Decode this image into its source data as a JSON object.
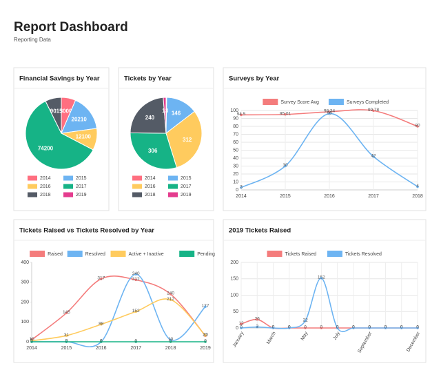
{
  "header": {
    "title": "Report Dashboard",
    "subtitle": "Reporting Data"
  },
  "chart_data": [
    {
      "type": "pie",
      "title": "Financial Savings by Year",
      "categories": [
        "2014",
        "2015",
        "2016",
        "2017",
        "2018",
        "2019"
      ],
      "values": [
        8000,
        20210,
        12100,
        74200,
        9015,
        0
      ],
      "colors": [
        "#ff6f80",
        "#6db4f2",
        "#ffcb5e",
        "#16b386",
        "#545b66",
        "#e43c8e"
      ]
    },
    {
      "type": "pie",
      "title": "Tickets by Year",
      "categories": [
        "2014",
        "2015",
        "2016",
        "2017",
        "2018",
        "2019"
      ],
      "values": [
        3,
        146,
        312,
        306,
        240,
        13
      ],
      "colors": [
        "#ff6f80",
        "#6db4f2",
        "#ffcb5e",
        "#16b386",
        "#545b66",
        "#e43c8e"
      ]
    },
    {
      "type": "line",
      "title": "Surveys by Year",
      "categories": [
        "2014",
        "2015",
        "2016",
        "2017",
        "2018"
      ],
      "series": [
        {
          "name": "Survey Score Avg",
          "color": "#f47c7c",
          "values": [
            94.5,
            95.01,
            98.34,
            99.78,
            80
          ]
        },
        {
          "name": "Surveys Completed",
          "color": "#6db4f2",
          "values": [
            3,
            30,
            96,
            42,
            4
          ]
        }
      ],
      "ylim": [
        0,
        100
      ],
      "yticks": [
        0,
        10,
        20,
        30,
        40,
        50,
        60,
        70,
        80,
        90,
        100
      ],
      "grid": true
    },
    {
      "type": "line",
      "title": "Tickets Raised vs Tickets Resolved by Year",
      "categories": [
        "2014",
        "2015",
        "2016",
        "2017",
        "2018",
        "2019"
      ],
      "series": [
        {
          "name": "Raised",
          "color": "#f47c7c",
          "values": [
            10,
            145,
            317,
            312,
            240,
            30
          ]
        },
        {
          "name": "Resolved",
          "color": "#6db4f2",
          "values": [
            0,
            0,
            0,
            340,
            10,
            177
          ]
        },
        {
          "name": "Active + Inactive",
          "color": "#ffcb5e",
          "values": [
            5,
            31,
            88,
            152,
            212,
            32
          ]
        },
        {
          "name": "Pending",
          "color": "#16b386",
          "values": [
            0,
            0,
            0,
            0,
            0,
            0
          ]
        }
      ],
      "ylim": [
        0,
        400
      ],
      "yticks": [
        0,
        100,
        200,
        300,
        400
      ],
      "grid": false
    },
    {
      "type": "line",
      "title": "2019 Tickets Raised",
      "categories": [
        "January",
        null,
        "March",
        null,
        "May",
        null,
        "July",
        null,
        "September",
        null,
        null,
        "December"
      ],
      "series": [
        {
          "name": "Tickets Raised",
          "color": "#f47c7c",
          "values": [
            12,
            26,
            0,
            0,
            0,
            0,
            0,
            0,
            0,
            0,
            0,
            0
          ]
        },
        {
          "name": "Tickets Resolved",
          "color": "#6db4f2",
          "values": [
            0,
            3,
            0,
            0,
            22,
            152,
            0,
            0,
            0,
            0,
            0,
            0
          ]
        }
      ],
      "ylim": [
        0,
        200
      ],
      "yticks": [
        0,
        50,
        100,
        150,
        200
      ],
      "grid": true,
      "rotate_x_labels": true
    }
  ]
}
